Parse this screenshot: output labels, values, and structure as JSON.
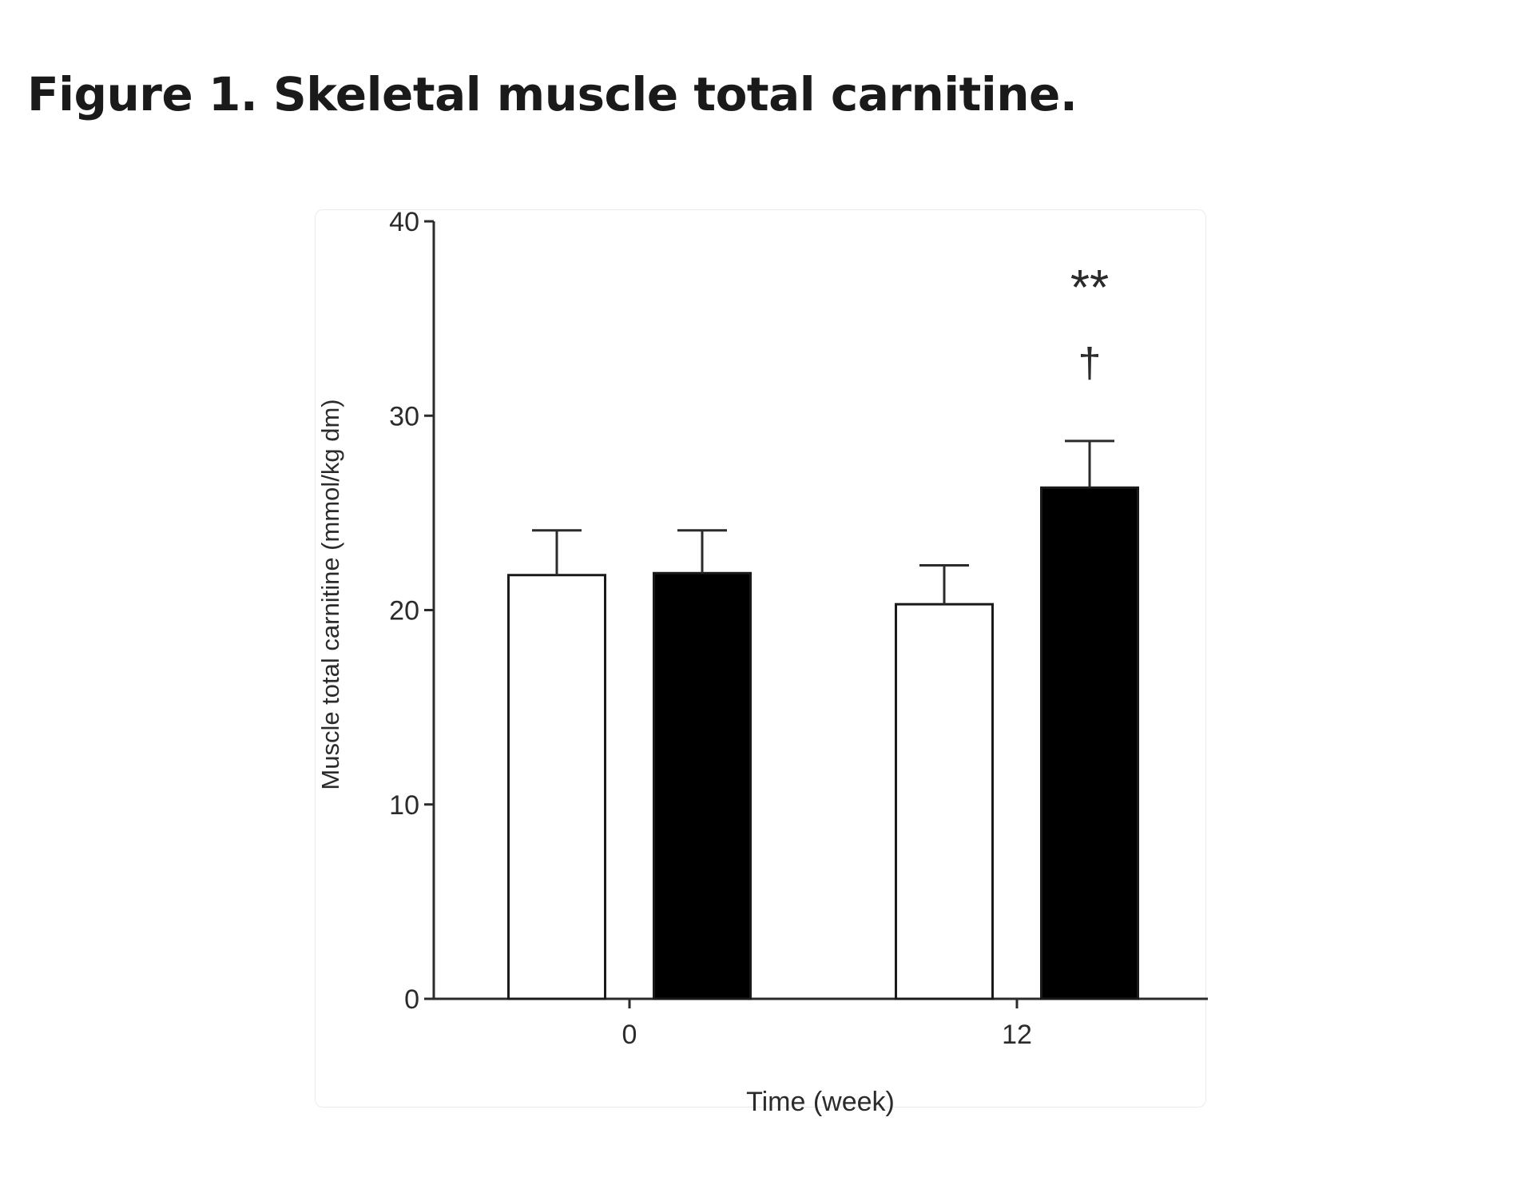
{
  "figure": {
    "title": "Figure 1. Skeletal muscle total carnitine."
  },
  "chart_data": {
    "type": "bar",
    "categories": [
      "0",
      "12"
    ],
    "series": [
      {
        "fill": "#ffffff",
        "values": [
          21.8,
          20.3
        ],
        "errors": [
          2.3,
          2.0
        ]
      },
      {
        "fill": "#000000",
        "values": [
          21.9,
          26.3
        ],
        "errors": [
          2.2,
          2.4
        ]
      }
    ],
    "xlabel": "Time (week)",
    "ylabel": "Muscle total carnitine (mmol/kg dm)",
    "ylim": [
      0,
      40
    ],
    "yticks": [
      "0",
      "10",
      "20",
      "30",
      "40"
    ],
    "grid": false,
    "legend": "none",
    "annotations": [
      {
        "text": "**",
        "category": "12",
        "series_index": 1,
        "value": 36.8
      },
      {
        "text": "†",
        "category": "12",
        "series_index": 1,
        "value": 33.0
      }
    ],
    "colors": {
      "axis": "#2b2b2b",
      "bar_stroke": "#1a1a1a"
    }
  }
}
